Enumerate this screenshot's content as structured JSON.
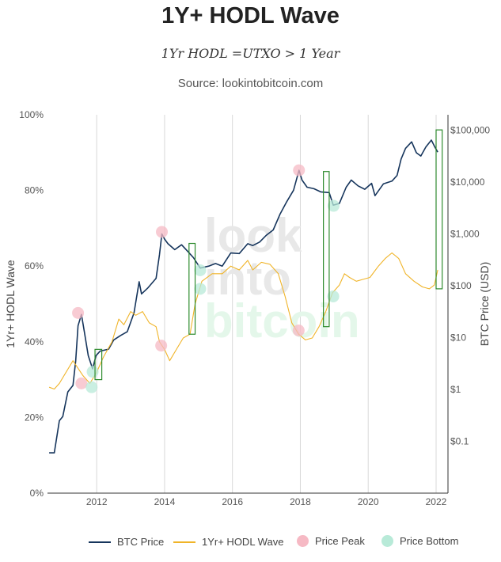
{
  "title": "1Y+ HODL Wave",
  "subtitle": "1Yr HODL =UTXO > 1 Year",
  "source": "Source: lookintobitcoin.com",
  "watermark": [
    "look",
    "into",
    "bitcoin"
  ],
  "colors": {
    "btc": "#16355c",
    "hodl": "#f0b428",
    "peak": "#f6b9c4",
    "bottom": "#b8ead8",
    "box": "#2e8b2e",
    "grid": "#d9d9d9"
  },
  "chart_data": {
    "type": "line",
    "xlabel": "",
    "ylabel": "1Yr+ HODL Wave",
    "y2label": "BTC Price (USD)",
    "xlim": [
      2010.55,
      2022.35
    ],
    "ylim": [
      0,
      100
    ],
    "y2lim_log": [
      0.01,
      200000
    ],
    "x_ticks": [
      "2012",
      "2014",
      "2016",
      "2018",
      "2020",
      "2022"
    ],
    "y_ticks": [
      "0%",
      "20%",
      "40%",
      "60%",
      "80%",
      "100%"
    ],
    "y2_ticks": [
      "$0.1",
      "$1",
      "$10",
      "$100",
      "$1,000",
      "$10,000",
      "$100,000"
    ],
    "legend": [
      "BTC Price",
      "1Yr+ HODL Wave",
      "Price Peak",
      "Price Bottom"
    ],
    "series": [
      {
        "name": "BTC Price",
        "axis": "right",
        "points": [
          [
            2010.6,
            0.06
          ],
          [
            2010.75,
            0.06
          ],
          [
            2010.9,
            0.25
          ],
          [
            2011.0,
            0.3
          ],
          [
            2011.15,
            0.9
          ],
          [
            2011.3,
            1.2
          ],
          [
            2011.38,
            3.5
          ],
          [
            2011.45,
            17
          ],
          [
            2011.55,
            28
          ],
          [
            2011.62,
            15
          ],
          [
            2011.75,
            4.5
          ],
          [
            2011.88,
            2.5
          ],
          [
            2011.98,
            4.5
          ],
          [
            2012.1,
            5.5
          ],
          [
            2012.35,
            6
          ],
          [
            2012.5,
            9
          ],
          [
            2012.7,
            11
          ],
          [
            2012.9,
            13
          ],
          [
            2013.1,
            30
          ],
          [
            2013.25,
            120
          ],
          [
            2013.32,
            70
          ],
          [
            2013.5,
            90
          ],
          [
            2013.75,
            140
          ],
          [
            2013.85,
            400
          ],
          [
            2013.92,
            1000
          ],
          [
            2014.0,
            800
          ],
          [
            2014.1,
            650
          ],
          [
            2014.3,
            500
          ],
          [
            2014.5,
            620
          ],
          [
            2014.7,
            450
          ],
          [
            2014.85,
            350
          ],
          [
            2015.05,
            220
          ],
          [
            2015.3,
            240
          ],
          [
            2015.5,
            270
          ],
          [
            2015.7,
            240
          ],
          [
            2015.95,
            430
          ],
          [
            2016.2,
            420
          ],
          [
            2016.45,
            650
          ],
          [
            2016.6,
            600
          ],
          [
            2016.8,
            700
          ],
          [
            2017.0,
            950
          ],
          [
            2017.2,
            1200
          ],
          [
            2017.4,
            2400
          ],
          [
            2017.6,
            4200
          ],
          [
            2017.8,
            7000
          ],
          [
            2017.96,
            17000
          ],
          [
            2018.05,
            11000
          ],
          [
            2018.2,
            8000
          ],
          [
            2018.4,
            7500
          ],
          [
            2018.6,
            6500
          ],
          [
            2018.85,
            6300
          ],
          [
            2018.97,
            3600
          ],
          [
            2019.15,
            3900
          ],
          [
            2019.35,
            8000
          ],
          [
            2019.5,
            11000
          ],
          [
            2019.7,
            8500
          ],
          [
            2019.9,
            7300
          ],
          [
            2020.1,
            9500
          ],
          [
            2020.2,
            5500
          ],
          [
            2020.45,
            9300
          ],
          [
            2020.7,
            10500
          ],
          [
            2020.85,
            13500
          ],
          [
            2020.97,
            28000
          ],
          [
            2021.1,
            45000
          ],
          [
            2021.28,
            60000
          ],
          [
            2021.42,
            37000
          ],
          [
            2021.55,
            32000
          ],
          [
            2021.7,
            48000
          ],
          [
            2021.86,
            65000
          ],
          [
            2021.97,
            47000
          ],
          [
            2022.05,
            38000
          ]
        ]
      },
      {
        "name": "1Yr+ HODL Wave",
        "axis": "left",
        "points": [
          [
            2010.6,
            28
          ],
          [
            2010.75,
            27.5
          ],
          [
            2010.9,
            29
          ],
          [
            2011.1,
            32
          ],
          [
            2011.3,
            35
          ],
          [
            2011.45,
            33
          ],
          [
            2011.6,
            31
          ],
          [
            2011.8,
            29
          ],
          [
            2012.0,
            32
          ],
          [
            2012.2,
            36
          ],
          [
            2012.45,
            40
          ],
          [
            2012.65,
            46
          ],
          [
            2012.8,
            44.5
          ],
          [
            2013.0,
            48
          ],
          [
            2013.15,
            47
          ],
          [
            2013.35,
            48
          ],
          [
            2013.55,
            45
          ],
          [
            2013.75,
            44
          ],
          [
            2013.85,
            40
          ],
          [
            2014.0,
            38
          ],
          [
            2014.15,
            35
          ],
          [
            2014.35,
            38
          ],
          [
            2014.55,
            41
          ],
          [
            2014.75,
            42
          ],
          [
            2014.9,
            50
          ],
          [
            2015.1,
            56
          ],
          [
            2015.4,
            58
          ],
          [
            2015.7,
            58
          ],
          [
            2015.95,
            60
          ],
          [
            2016.2,
            59
          ],
          [
            2016.45,
            61.5
          ],
          [
            2016.6,
            59
          ],
          [
            2016.85,
            61
          ],
          [
            2017.1,
            60.5
          ],
          [
            2017.35,
            58
          ],
          [
            2017.55,
            52
          ],
          [
            2017.75,
            45
          ],
          [
            2017.95,
            42
          ],
          [
            2018.15,
            40.5
          ],
          [
            2018.35,
            41
          ],
          [
            2018.55,
            44
          ],
          [
            2018.75,
            48
          ],
          [
            2018.95,
            53
          ],
          [
            2019.15,
            55
          ],
          [
            2019.3,
            58
          ],
          [
            2019.45,
            57
          ],
          [
            2019.65,
            56
          ],
          [
            2019.85,
            56.5
          ],
          [
            2020.05,
            57
          ],
          [
            2020.3,
            60
          ],
          [
            2020.5,
            62
          ],
          [
            2020.7,
            63.5
          ],
          [
            2020.9,
            62
          ],
          [
            2021.1,
            58
          ],
          [
            2021.35,
            56
          ],
          [
            2021.6,
            54.5
          ],
          [
            2021.8,
            54
          ],
          [
            2021.95,
            55
          ],
          [
            2022.05,
            59
          ]
        ]
      },
      {
        "name": "Price Peak",
        "axis": "right",
        "points": [
          [
            2011.45,
            30
          ],
          [
            2013.92,
            1100
          ],
          [
            2017.96,
            17000
          ]
        ]
      },
      {
        "name": "Price Peak",
        "axis": "left",
        "points": [
          [
            2011.55,
            29
          ],
          [
            2013.9,
            39
          ],
          [
            2017.95,
            43
          ]
        ]
      },
      {
        "name": "Price Bottom",
        "axis": "right",
        "points": [
          [
            2011.88,
            2.2
          ],
          [
            2015.05,
            200
          ],
          [
            2018.98,
            3500
          ]
        ]
      },
      {
        "name": "Price Bottom",
        "axis": "left",
        "points": [
          [
            2011.85,
            28
          ],
          [
            2015.05,
            54
          ],
          [
            2018.97,
            52
          ]
        ]
      }
    ],
    "boxes": [
      {
        "x": [
          2011.95,
          2012.15
        ],
        "y": [
          30,
          38
        ]
      },
      {
        "x": [
          2014.72,
          2014.9
        ],
        "y": [
          42,
          66
        ]
      },
      {
        "x": [
          2018.68,
          2018.85
        ],
        "y": [
          44,
          85
        ]
      },
      {
        "x": [
          2022.0,
          2022.18
        ],
        "y": [
          54,
          96
        ]
      }
    ]
  }
}
